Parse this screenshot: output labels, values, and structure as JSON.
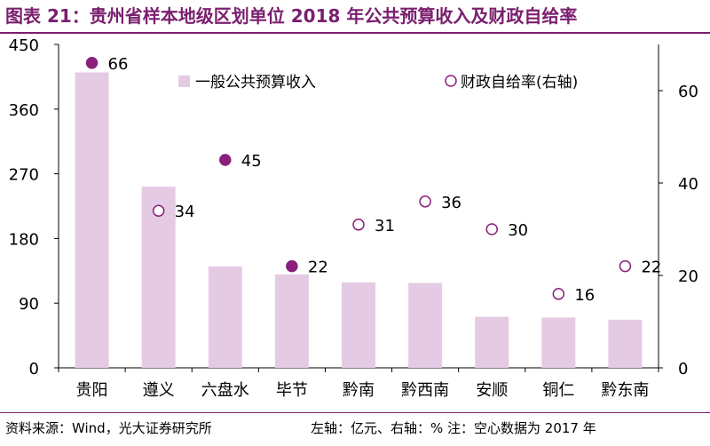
{
  "title": "图表 21：贵州省样本地级区划单位 2018 年公共预算收入及财政自给率",
  "footer": {
    "source": "资料来源：Wind，光大证券研究所",
    "note": "左轴：亿元、右轴：% 注：空心数据为 2017 年"
  },
  "colors": {
    "accent": "#7a1f6e",
    "bar": "#e4cbe3",
    "point": "#8a1f7e"
  },
  "chart_data": {
    "type": "bar",
    "categories": [
      "贵阳",
      "遵义",
      "六盘水",
      "毕节",
      "黔南",
      "黔西南",
      "安顺",
      "铜仁",
      "黔东南"
    ],
    "series": [
      {
        "name": "一般公共预算收入",
        "axis": "left",
        "values": [
          411,
          252,
          141,
          130,
          119,
          118,
          71,
          70,
          67
        ]
      },
      {
        "name": "财政自给率(右轴)",
        "axis": "right",
        "values": [
          66,
          34,
          45,
          22,
          31,
          36,
          30,
          16,
          22
        ],
        "hollow": [
          false,
          true,
          false,
          false,
          true,
          true,
          true,
          true,
          true
        ]
      }
    ],
    "yleft": {
      "min": 0,
      "max": 450,
      "ticks": [
        0,
        90,
        180,
        270,
        360,
        450
      ]
    },
    "yright": {
      "min": 0,
      "max": 70,
      "ticks": [
        0,
        20,
        40,
        60
      ]
    },
    "legend": "top",
    "grid": false
  }
}
